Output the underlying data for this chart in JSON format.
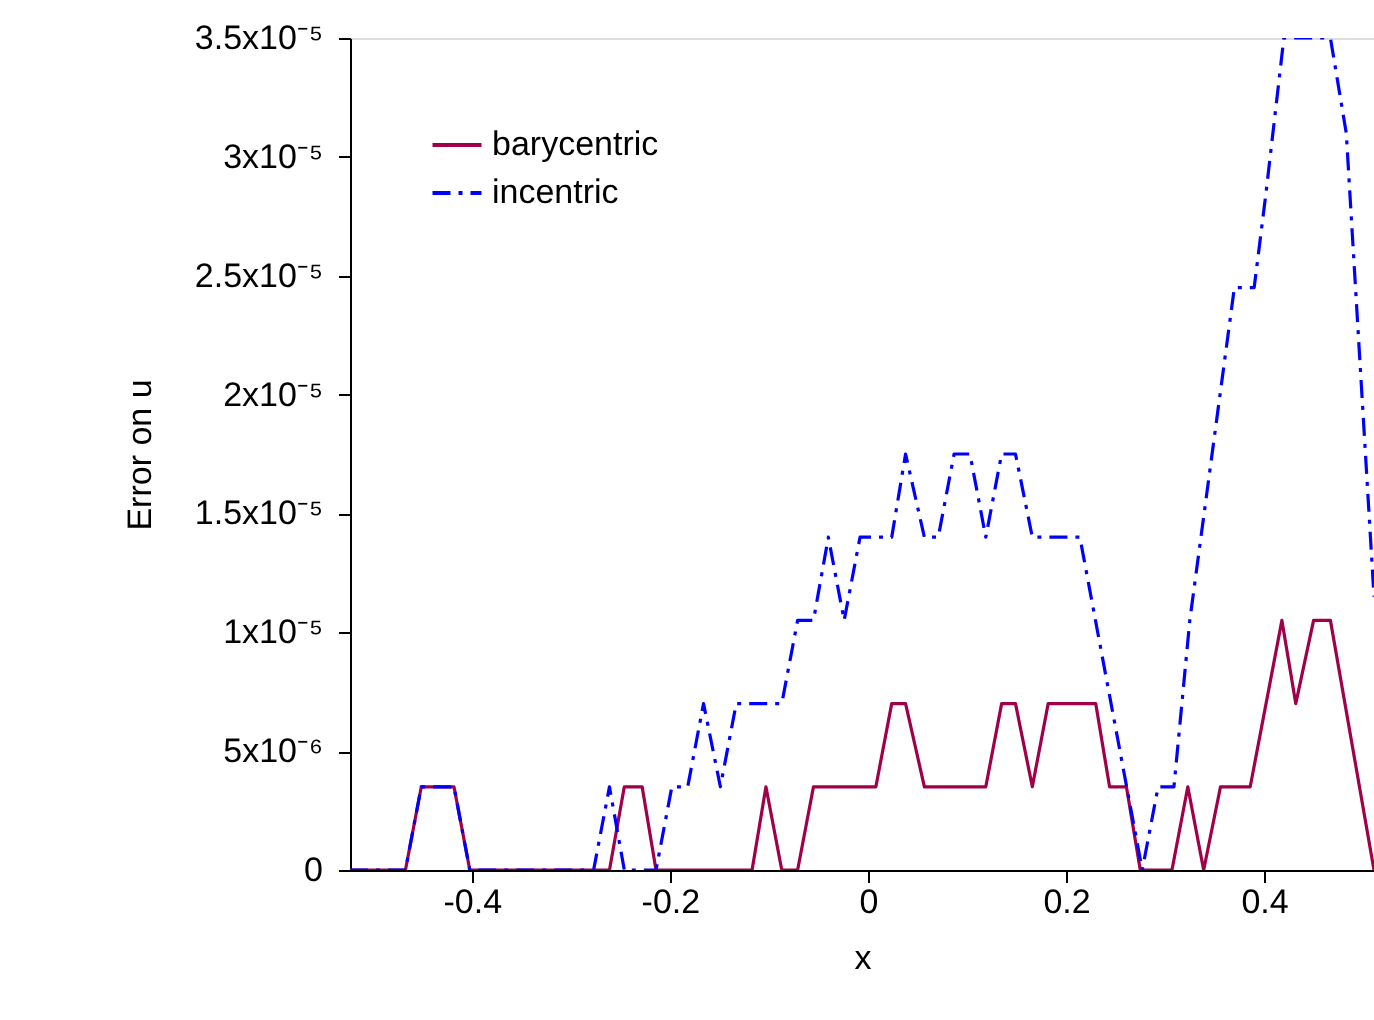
{
  "chart_data": {
    "type": "line",
    "xlabel": "x",
    "ylabel": "Error on u",
    "xlim": [
      -0.523,
      0.511
    ],
    "xticks": [
      -0.4,
      -0.2,
      0,
      0.2,
      0.4
    ],
    "ylim": [
      0,
      3.5e-05
    ],
    "yticks": [
      0,
      {
        "value": 5e-06,
        "label": "5x10⁻⁶"
      },
      {
        "value": 1e-05,
        "label": "1x10⁻⁵"
      },
      {
        "value": 1.5e-05,
        "label": "1.5x10⁻⁵"
      },
      {
        "value": 2e-05,
        "label": "2x10⁻⁵"
      },
      {
        "value": 2.5e-05,
        "label": "2.5x10⁻⁵"
      },
      {
        "value": 3e-05,
        "label": "3x10⁻⁵"
      },
      {
        "value": 3.5e-05,
        "label": "3.5x10⁻⁵"
      }
    ],
    "grid": false,
    "legend": "top left",
    "marker": "none",
    "series": [
      {
        "name": "barycentric",
        "color": "#a0004a",
        "line_style": "solid",
        "x": [
          -0.523,
          -0.467,
          -0.451,
          -0.418,
          -0.402,
          -0.261,
          -0.246,
          -0.228,
          -0.214,
          -0.117,
          -0.103,
          -0.087,
          -0.071,
          -0.055,
          0.008,
          0.024,
          0.038,
          0.057,
          0.119,
          0.135,
          0.149,
          0.166,
          0.182,
          0.23,
          0.244,
          0.261,
          0.275,
          0.307,
          0.323,
          0.339,
          0.356,
          0.386,
          0.418,
          0.432,
          0.45,
          0.467,
          0.511
        ],
        "values": [
          0,
          0,
          3.5e-06,
          3.5e-06,
          0,
          0,
          3.5e-06,
          3.5e-06,
          0,
          0,
          3.5e-06,
          0,
          0,
          3.5e-06,
          3.5e-06,
          7e-06,
          7e-06,
          3.5e-06,
          3.5e-06,
          7e-06,
          7e-06,
          3.5e-06,
          7e-06,
          7e-06,
          3.5e-06,
          3.5e-06,
          0,
          0,
          3.5e-06,
          0,
          3.5e-06,
          3.5e-06,
          1.05e-05,
          7e-06,
          1.05e-05,
          1.05e-05,
          0
        ]
      },
      {
        "name": "incentric",
        "color": "#0000ff",
        "line_style": "dashed",
        "x": [
          -0.523,
          -0.467,
          -0.451,
          -0.418,
          -0.402,
          -0.277,
          -0.261,
          -0.246,
          -0.214,
          -0.198,
          -0.182,
          -0.166,
          -0.149,
          -0.133,
          -0.087,
          -0.071,
          -0.055,
          -0.04,
          -0.024,
          -0.008,
          0.024,
          0.038,
          0.057,
          0.071,
          0.087,
          0.103,
          0.119,
          0.135,
          0.149,
          0.166,
          0.214,
          0.277,
          0.293,
          0.309,
          0.325,
          0.37,
          0.39,
          0.402,
          0.42,
          0.467,
          0.483,
          0.511
        ],
        "values": [
          0,
          0,
          3.5e-06,
          3.5e-06,
          0,
          0,
          3.5e-06,
          0,
          0,
          3.5e-06,
          3.5e-06,
          7e-06,
          3.5e-06,
          7e-06,
          7e-06,
          1.05e-05,
          1.05e-05,
          1.4e-05,
          1.05e-05,
          1.4e-05,
          1.4e-05,
          1.75e-05,
          1.4e-05,
          1.4e-05,
          1.75e-05,
          1.75e-05,
          1.4e-05,
          1.75e-05,
          1.75e-05,
          1.4e-05,
          1.4e-05,
          0,
          3.5e-06,
          3.5e-06,
          1.05e-05,
          2.45e-05,
          2.45e-05,
          2.85e-05,
          3.5e-05,
          3.5e-05,
          3.1e-05,
          1.15e-05
        ]
      }
    ]
  }
}
